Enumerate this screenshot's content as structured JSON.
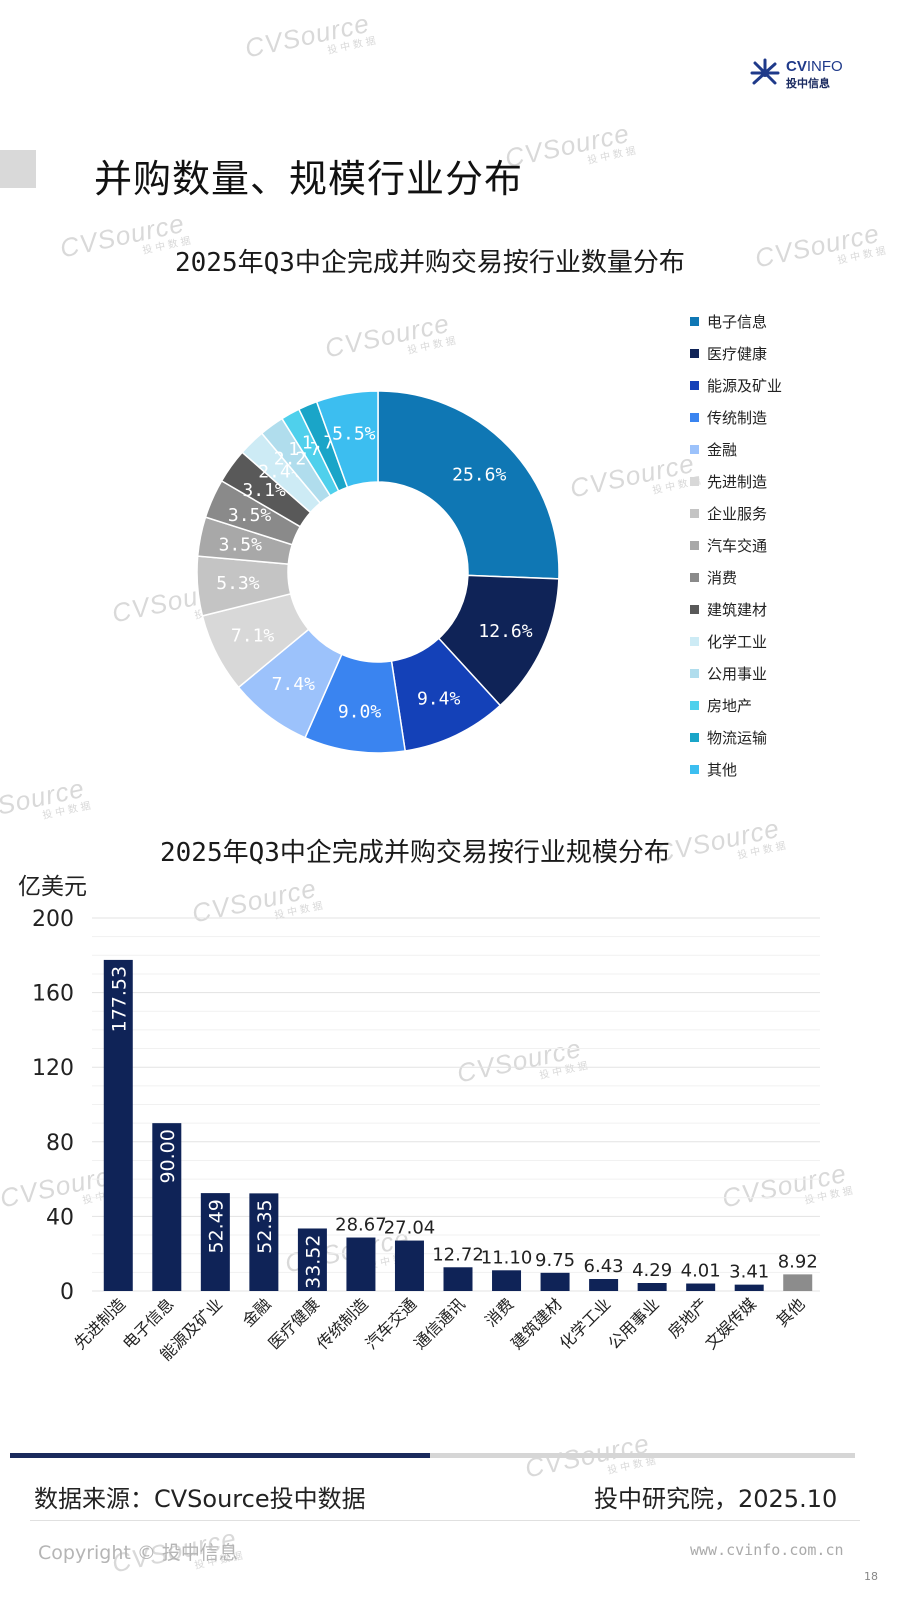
{
  "header": {
    "title": "并购数量、规模行业分布",
    "logo_brand_bold": "CV",
    "logo_brand_light": "INFO",
    "logo_sub": "投中信息"
  },
  "watermark": {
    "text": "CVSource",
    "sub": "投中数据"
  },
  "chart_data": [
    {
      "type": "pie",
      "title": "2025年Q3中企完成并购交易按行业数量分布",
      "donut": true,
      "categories": [
        "电子信息",
        "医疗健康",
        "能源及矿业",
        "传统制造",
        "金融",
        "先进制造",
        "企业服务",
        "汽车交通",
        "消费",
        "建筑建材",
        "化学工业",
        "公用事业",
        "房地产",
        "物流运输",
        "其他"
      ],
      "values": [
        25.6,
        12.6,
        9.4,
        9.0,
        7.4,
        7.1,
        5.3,
        3.5,
        3.5,
        3.1,
        2.4,
        2.2,
        1.7,
        1.7,
        5.5
      ],
      "labels": [
        "25.6%",
        "12.6%",
        "9.4%",
        "9.0%",
        "7.4%",
        "7.1%",
        "5.3%",
        "3.5%",
        "3.5%",
        "3.1%",
        "2.4%",
        "2.2%",
        "1.7%",
        "1.7%",
        "5.5%"
      ],
      "colors": [
        "#0f77b4",
        "#0f2357",
        "#1441b8",
        "#3a84f0",
        "#9cc2fb",
        "#d8d8d8",
        "#c4c4c4",
        "#a8a8a8",
        "#8a8a8a",
        "#595959",
        "#cdebf5",
        "#b0dded",
        "#4fd0ec",
        "#1aa5c8",
        "#3cbef0"
      ],
      "legend_position": "right"
    },
    {
      "type": "bar",
      "title": "2025年Q3中企完成并购交易按行业规模分布",
      "ylabel": "亿美元",
      "ylim": [
        0,
        200
      ],
      "yticks": [
        0,
        40,
        80,
        120,
        160,
        200
      ],
      "grid": true,
      "categories": [
        "先进制造",
        "电子信息",
        "能源及矿业",
        "金融",
        "医疗健康",
        "传统制造",
        "汽车交通",
        "通信通讯",
        "消费",
        "建筑建材",
        "化学工业",
        "公用事业",
        "房地产",
        "文娱传媒",
        "其他"
      ],
      "values": [
        177.53,
        90.0,
        52.49,
        52.35,
        33.52,
        28.67,
        27.04,
        12.72,
        11.1,
        9.75,
        6.43,
        4.29,
        4.01,
        3.41,
        8.92
      ],
      "labels": [
        "177.53",
        "90.00",
        "52.49",
        "52.35",
        "33.52",
        "28.67",
        "27.04",
        "12.72",
        "11.10",
        "9.75",
        "6.43",
        "4.29",
        "4.01",
        "3.41",
        "8.92"
      ],
      "colors": [
        "#0f2357",
        "#0f2357",
        "#0f2357",
        "#0f2357",
        "#0f2357",
        "#0f2357",
        "#0f2357",
        "#0f2357",
        "#0f2357",
        "#0f2357",
        "#0f2357",
        "#0f2357",
        "#0f2357",
        "#0f2357",
        "#8c8c8c"
      ]
    }
  ],
  "footer": {
    "source": "数据来源：CVSource投中数据",
    "org": "投中研究院，2025.10",
    "copyright": "Copyright © 投中信息",
    "website": "www.cvinfo.com.cn",
    "page_number": "18"
  }
}
